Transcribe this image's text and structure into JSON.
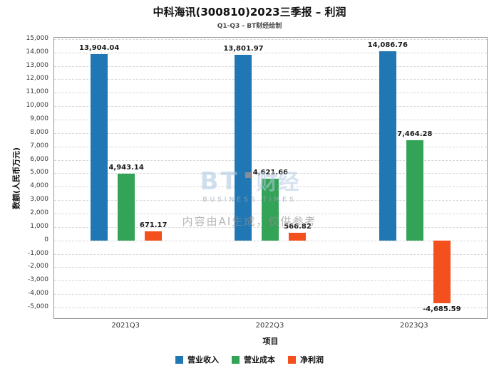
{
  "title": "中科海讯(300810)2023三季报 – 利润",
  "subtitle": "Q1-Q3 - BT财经绘制",
  "watermark": {
    "logo_bt": "BT",
    "logo_cn": "财经",
    "logo_sub": "BUSINESS TIMES",
    "ai_note": "内容由AI生成，仅供参考"
  },
  "chart_data": {
    "type": "bar",
    "categories": [
      "2021Q3",
      "2022Q3",
      "2023Q3"
    ],
    "series": [
      {
        "name": "营业收入",
        "color": "#2077b4",
        "values": [
          13904.04,
          13801.97,
          14086.76
        ]
      },
      {
        "name": "营业成本",
        "color": "#33a357",
        "values": [
          4943.14,
          4621.66,
          7464.28
        ]
      },
      {
        "name": "净利润",
        "color": "#f4501e",
        "values": [
          671.17,
          566.82,
          -4685.59
        ]
      }
    ],
    "xlabel": "项目",
    "ylabel": "数额(人民币万元)",
    "ylim": [
      -5000,
      15000
    ],
    "ytick_step": 1000,
    "grid": true,
    "legend_position": "bottom"
  }
}
